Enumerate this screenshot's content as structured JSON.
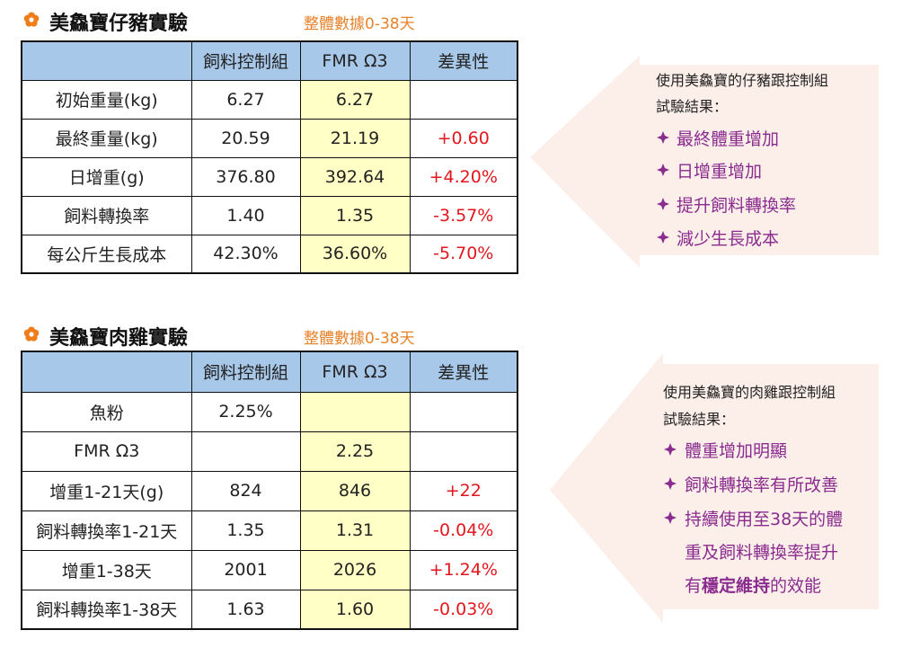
{
  "sections": [
    {
      "title": "美鱻寶仔豬實驗",
      "subtitle": "整體數據0-38天",
      "table": {
        "header": [
          null,
          "飼料控制組",
          "FMR Ω3",
          "差異性"
        ],
        "rows": [
          [
            "初始重量(kg)",
            "6.27",
            "6.27",
            null
          ],
          [
            "最終重量(kg)",
            "20.59",
            "21.19",
            "+0.60"
          ],
          [
            "日增重(g)",
            "376.80",
            "392.64",
            "+4.20%"
          ],
          [
            "飼料轉換率",
            "1.40",
            "1.35",
            "-3.57%"
          ],
          [
            "每公斤生長成本",
            "42.30%",
            "36.60%",
            "-5.70%"
          ]
        ]
      },
      "callout": {
        "intro": [
          "使用美鱻寶的仔豬跟控制組",
          "試驗結果："
        ],
        "bullets": [
          [
            "最終體重增加"
          ],
          [
            "日增重增加"
          ],
          [
            "提升飼料轉換率"
          ],
          [
            "減少生長成本"
          ]
        ]
      }
    },
    {
      "title": "美鱻寶肉雞實驗",
      "subtitle": "整體數據0-38天",
      "table": {
        "header": [
          null,
          "飼料控制組",
          "FMR Ω3",
          "差異性"
        ],
        "rows": [
          [
            "魚粉",
            "2.25%",
            null,
            null
          ],
          [
            "FMR Ω3",
            null,
            "2.25",
            null
          ],
          [
            "增重1-21天(g)",
            "824",
            "846",
            "+22"
          ],
          [
            "飼料轉換率1-21天",
            "1.35",
            "1.31",
            "-0.04%"
          ],
          [
            "增重1-38天",
            "2001",
            "2026",
            "+1.24%"
          ],
          [
            "飼料轉換率1-38天",
            "1.63",
            "1.60",
            "-0.03%"
          ]
        ]
      },
      "callout": {
        "intro": [
          "使用美鱻寶的肉雞跟控制組",
          "試驗結果："
        ],
        "bullets": [
          [
            "體重增加明顯"
          ],
          [
            "飼料轉換率有所改善"
          ],
          [
            "持續使用至38天的體",
            "重及飼料轉換率提升",
            {
              "parts": [
                "有",
                "穩定維持",
                "的效能"
              ],
              "bold": [
                1
              ]
            }
          ]
        ]
      }
    }
  ]
}
